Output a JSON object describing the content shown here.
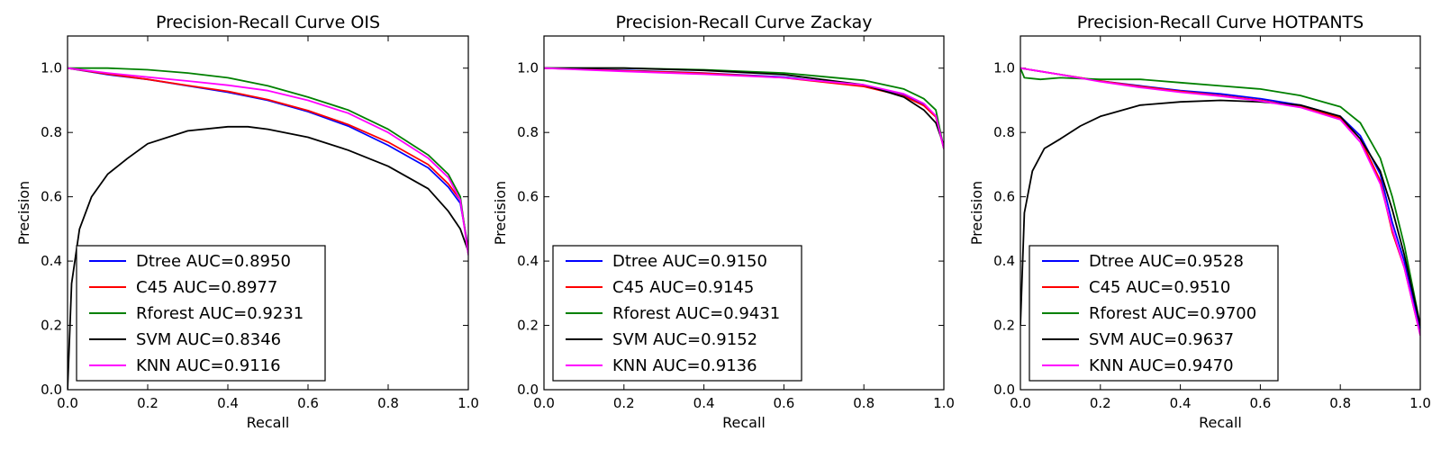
{
  "chart_data": [
    {
      "type": "line",
      "title": "Precision-Recall Curve OIS",
      "xlabel": "Recall",
      "ylabel": "Precision",
      "xlim": [
        0.0,
        1.0
      ],
      "ylim": [
        0.0,
        1.1
      ],
      "xticks": [
        "0.0",
        "0.2",
        "0.4",
        "0.6",
        "0.8",
        "1.0"
      ],
      "yticks": [
        "0.0",
        "0.2",
        "0.4",
        "0.6",
        "0.8",
        "1.0"
      ],
      "legend_position": "lower-left",
      "series": [
        {
          "name": "Dtree AUC=0.8950",
          "color": "#0000ff",
          "x": [
            0.0,
            0.1,
            0.2,
            0.3,
            0.4,
            0.5,
            0.6,
            0.7,
            0.8,
            0.9,
            0.95,
            0.98,
            1.0
          ],
          "y": [
            1.0,
            0.98,
            0.965,
            0.945,
            0.925,
            0.9,
            0.865,
            0.82,
            0.76,
            0.69,
            0.63,
            0.58,
            0.44
          ]
        },
        {
          "name": "C45 AUC=0.8977",
          "color": "#ff0000",
          "x": [
            0.0,
            0.1,
            0.2,
            0.3,
            0.4,
            0.5,
            0.6,
            0.7,
            0.8,
            0.9,
            0.95,
            0.98,
            1.0
          ],
          "y": [
            1.0,
            0.982,
            0.965,
            0.946,
            0.928,
            0.902,
            0.868,
            0.825,
            0.77,
            0.7,
            0.64,
            0.59,
            0.43
          ]
        },
        {
          "name": "Rforest AUC=0.9231",
          "color": "#008000",
          "x": [
            0.0,
            0.1,
            0.2,
            0.3,
            0.4,
            0.5,
            0.6,
            0.7,
            0.8,
            0.9,
            0.95,
            0.98,
            1.0
          ],
          "y": [
            1.0,
            1.0,
            0.995,
            0.985,
            0.97,
            0.945,
            0.91,
            0.87,
            0.81,
            0.73,
            0.67,
            0.6,
            0.42
          ]
        },
        {
          "name": "SVM AUC=0.8346",
          "color": "#000000",
          "x": [
            0.0,
            0.01,
            0.03,
            0.06,
            0.1,
            0.15,
            0.2,
            0.3,
            0.4,
            0.45,
            0.5,
            0.6,
            0.7,
            0.8,
            0.9,
            0.95,
            0.98,
            1.0
          ],
          "y": [
            0.0,
            0.33,
            0.5,
            0.6,
            0.67,
            0.72,
            0.765,
            0.805,
            0.818,
            0.818,
            0.81,
            0.785,
            0.745,
            0.695,
            0.625,
            0.555,
            0.5,
            0.43
          ]
        },
        {
          "name": "KNN AUC=0.9116",
          "color": "#ff00ff",
          "x": [
            0.0,
            0.1,
            0.2,
            0.3,
            0.4,
            0.5,
            0.6,
            0.7,
            0.8,
            0.9,
            0.95,
            0.98,
            1.0
          ],
          "y": [
            1.0,
            0.985,
            0.972,
            0.96,
            0.947,
            0.93,
            0.9,
            0.86,
            0.8,
            0.72,
            0.66,
            0.59,
            0.42
          ]
        }
      ]
    },
    {
      "type": "line",
      "title": "Precision-Recall Curve Zackay",
      "xlabel": "Recall",
      "ylabel": "Precision",
      "xlim": [
        0.0,
        1.0
      ],
      "ylim": [
        0.0,
        1.1
      ],
      "xticks": [
        "0.0",
        "0.2",
        "0.4",
        "0.6",
        "0.8",
        "1.0"
      ],
      "yticks": [
        "0.0",
        "0.2",
        "0.4",
        "0.6",
        "0.8",
        "1.0"
      ],
      "legend_position": "lower-left",
      "series": [
        {
          "name": "Dtree AUC=0.9150",
          "color": "#0000ff",
          "x": [
            0.0,
            0.2,
            0.4,
            0.6,
            0.8,
            0.9,
            0.95,
            0.98,
            1.0
          ],
          "y": [
            1.0,
            0.993,
            0.985,
            0.972,
            0.945,
            0.915,
            0.885,
            0.85,
            0.75
          ]
        },
        {
          "name": "C45 AUC=0.9145",
          "color": "#ff0000",
          "x": [
            0.0,
            0.2,
            0.4,
            0.6,
            0.8,
            0.9,
            0.95,
            0.98,
            1.0
          ],
          "y": [
            1.0,
            0.992,
            0.984,
            0.97,
            0.943,
            0.913,
            0.883,
            0.848,
            0.75
          ]
        },
        {
          "name": "Rforest AUC=0.9431",
          "color": "#008000",
          "x": [
            0.0,
            0.2,
            0.4,
            0.6,
            0.8,
            0.9,
            0.95,
            0.98,
            1.0
          ],
          "y": [
            1.0,
            1.0,
            0.995,
            0.985,
            0.962,
            0.935,
            0.905,
            0.87,
            0.75
          ]
        },
        {
          "name": "SVM AUC=0.9152",
          "color": "#000000",
          "x": [
            0.0,
            0.2,
            0.4,
            0.6,
            0.8,
            0.9,
            0.95,
            0.98,
            1.0
          ],
          "y": [
            1.0,
            1.0,
            0.993,
            0.98,
            0.948,
            0.91,
            0.87,
            0.83,
            0.76
          ]
        },
        {
          "name": "KNN AUC=0.9136",
          "color": "#ff00ff",
          "x": [
            0.0,
            0.2,
            0.4,
            0.6,
            0.8,
            0.9,
            0.95,
            0.98,
            1.0
          ],
          "y": [
            1.0,
            0.99,
            0.981,
            0.97,
            0.948,
            0.92,
            0.89,
            0.852,
            0.75
          ]
        }
      ]
    },
    {
      "type": "line",
      "title": "Precision-Recall Curve HOTPANTS",
      "xlabel": "Recall",
      "ylabel": "Precision",
      "xlim": [
        0.0,
        1.0
      ],
      "ylim": [
        0.0,
        1.1
      ],
      "xticks": [
        "0.0",
        "0.2",
        "0.4",
        "0.6",
        "0.8",
        "1.0"
      ],
      "yticks": [
        "0.0",
        "0.2",
        "0.4",
        "0.6",
        "0.8",
        "1.0"
      ],
      "legend_position": "lower-left",
      "series": [
        {
          "name": "Dtree AUC=0.9528",
          "color": "#0000ff",
          "x": [
            0.0,
            0.1,
            0.2,
            0.3,
            0.4,
            0.5,
            0.6,
            0.7,
            0.8,
            0.85,
            0.9,
            0.93,
            0.96,
            1.0
          ],
          "y": [
            1.0,
            0.98,
            0.96,
            0.945,
            0.93,
            0.92,
            0.905,
            0.885,
            0.85,
            0.79,
            0.67,
            0.52,
            0.4,
            0.18
          ]
        },
        {
          "name": "C45 AUC=0.9510",
          "color": "#ff0000",
          "x": [
            0.0,
            0.1,
            0.2,
            0.3,
            0.4,
            0.5,
            0.6,
            0.7,
            0.8,
            0.85,
            0.9,
            0.93,
            0.96,
            1.0
          ],
          "y": [
            1.0,
            0.98,
            0.96,
            0.943,
            0.928,
            0.915,
            0.9,
            0.88,
            0.845,
            0.78,
            0.65,
            0.49,
            0.38,
            0.17
          ]
        },
        {
          "name": "Rforest AUC=0.9700",
          "color": "#008000",
          "x": [
            0.0,
            0.01,
            0.05,
            0.1,
            0.2,
            0.3,
            0.4,
            0.5,
            0.6,
            0.7,
            0.8,
            0.85,
            0.9,
            0.93,
            0.96,
            1.0
          ],
          "y": [
            1.0,
            0.97,
            0.965,
            0.97,
            0.965,
            0.965,
            0.955,
            0.945,
            0.935,
            0.915,
            0.88,
            0.83,
            0.72,
            0.6,
            0.45,
            0.2
          ]
        },
        {
          "name": "SVM AUC=0.9637",
          "color": "#000000",
          "x": [
            0.0,
            0.01,
            0.03,
            0.06,
            0.1,
            0.15,
            0.2,
            0.3,
            0.4,
            0.5,
            0.6,
            0.7,
            0.8,
            0.85,
            0.9,
            0.93,
            0.96,
            1.0
          ],
          "y": [
            0.2,
            0.55,
            0.68,
            0.75,
            0.78,
            0.82,
            0.85,
            0.885,
            0.895,
            0.9,
            0.895,
            0.885,
            0.85,
            0.78,
            0.68,
            0.56,
            0.42,
            0.2
          ]
        },
        {
          "name": "KNN AUC=0.9470",
          "color": "#ff00ff",
          "x": [
            0.0,
            0.1,
            0.2,
            0.3,
            0.4,
            0.5,
            0.6,
            0.7,
            0.8,
            0.85,
            0.9,
            0.93,
            0.96,
            1.0
          ],
          "y": [
            1.0,
            0.98,
            0.958,
            0.94,
            0.925,
            0.913,
            0.898,
            0.878,
            0.84,
            0.77,
            0.64,
            0.5,
            0.38,
            0.17
          ]
        }
      ]
    }
  ]
}
